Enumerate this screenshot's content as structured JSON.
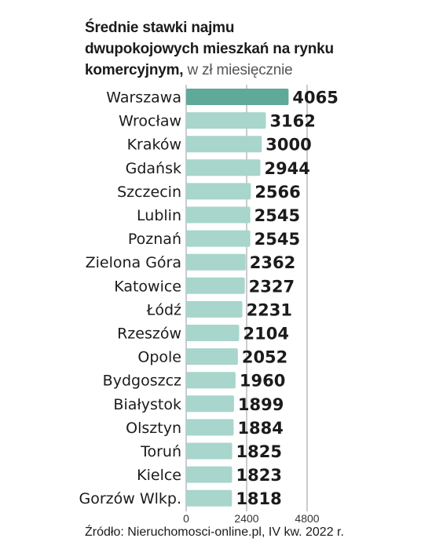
{
  "title": {
    "bold": "Średnie stawki najmu dwupokojowych mieszkań na rynku komercyjnym,",
    "subtitle": "w zł miesięcznie"
  },
  "source": "Źródło: Nieruchomosci-online.pl, IV kw. 2022 r.",
  "colors": {
    "highlight_bar": "#5fa999",
    "bar": "#a8d5cc",
    "gridline": "#9a9a9a"
  },
  "chart_data": {
    "type": "bar",
    "orientation": "horizontal",
    "categories": [
      "Warszawa",
      "Wrocław",
      "Kraków",
      "Gdańsk",
      "Szczecin",
      "Lublin",
      "Poznań",
      "Zielona Góra",
      "Katowice",
      "Łódź",
      "Rzeszów",
      "Opole",
      "Bydgoszcz",
      "Białystok",
      "Olsztyn",
      "Toruń",
      "Kielce",
      "Gorzów Wlkp."
    ],
    "values": [
      4065,
      3162,
      3000,
      2944,
      2566,
      2545,
      2545,
      2362,
      2327,
      2231,
      2104,
      2052,
      1960,
      1899,
      1884,
      1825,
      1823,
      1818
    ],
    "value_labels": [
      "4065",
      "3162",
      "3000",
      "2944",
      "2566",
      "2545",
      "2545",
      "2362",
      "2327",
      "2231",
      "2104",
      "2052",
      "1960",
      "1899",
      "1884",
      "1825",
      "1823",
      "1818"
    ],
    "xticks": [
      "0",
      "2400",
      "4800"
    ],
    "xlim": [
      0,
      4800
    ],
    "grid": true,
    "legend": "none"
  }
}
